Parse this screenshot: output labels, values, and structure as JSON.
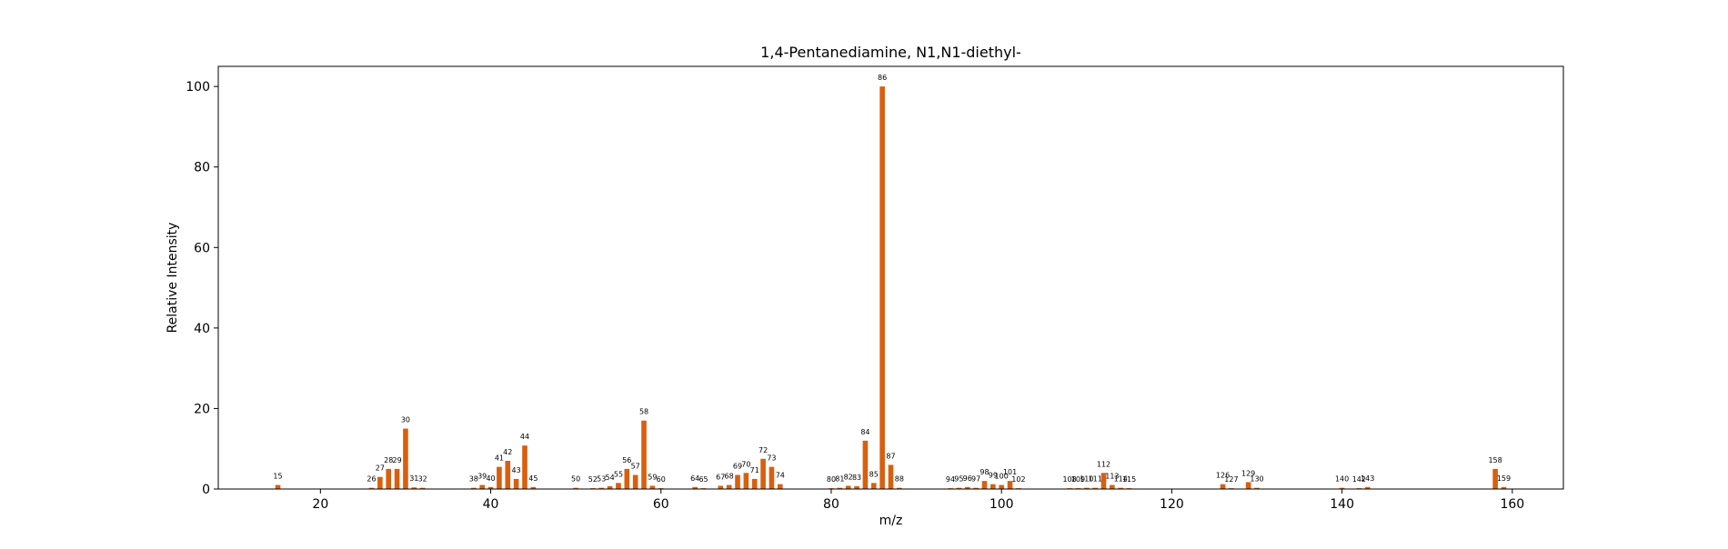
{
  "chart_data": {
    "type": "bar",
    "title": "1,4-Pentanediamine, N1,N1-diethyl-",
    "xlabel": "m/z",
    "ylabel": "Relative Intensity",
    "xlim": [
      8,
      166
    ],
    "ylim": [
      0,
      105
    ],
    "xticks": [
      20,
      40,
      60,
      80,
      100,
      120,
      140,
      160
    ],
    "yticks": [
      0,
      20,
      40,
      60,
      80,
      100
    ],
    "grid": false,
    "bar_color": "#d95f0e",
    "points": [
      {
        "mz": 15,
        "intensity": 1.0
      },
      {
        "mz": 26,
        "intensity": 0.3
      },
      {
        "mz": 27,
        "intensity": 3.0
      },
      {
        "mz": 28,
        "intensity": 5.0
      },
      {
        "mz": 29,
        "intensity": 5.0
      },
      {
        "mz": 30,
        "intensity": 15.0
      },
      {
        "mz": 31,
        "intensity": 0.4
      },
      {
        "mz": 32,
        "intensity": 0.3
      },
      {
        "mz": 38,
        "intensity": 0.3
      },
      {
        "mz": 39,
        "intensity": 1.0
      },
      {
        "mz": 40,
        "intensity": 0.5
      },
      {
        "mz": 41,
        "intensity": 5.5
      },
      {
        "mz": 42,
        "intensity": 7.0
      },
      {
        "mz": 43,
        "intensity": 2.5
      },
      {
        "mz": 44,
        "intensity": 10.8
      },
      {
        "mz": 45,
        "intensity": 0.5
      },
      {
        "mz": 50,
        "intensity": 0.3
      },
      {
        "mz": 52,
        "intensity": 0.2
      },
      {
        "mz": 53,
        "intensity": 0.3
      },
      {
        "mz": 54,
        "intensity": 0.7
      },
      {
        "mz": 55,
        "intensity": 1.5
      },
      {
        "mz": 56,
        "intensity": 5.0
      },
      {
        "mz": 57,
        "intensity": 3.5
      },
      {
        "mz": 58,
        "intensity": 17.0
      },
      {
        "mz": 59,
        "intensity": 0.8
      },
      {
        "mz": 60,
        "intensity": 0.2
      },
      {
        "mz": 64,
        "intensity": 0.5
      },
      {
        "mz": 65,
        "intensity": 0.2
      },
      {
        "mz": 67,
        "intensity": 0.8
      },
      {
        "mz": 68,
        "intensity": 1.0
      },
      {
        "mz": 69,
        "intensity": 3.5
      },
      {
        "mz": 70,
        "intensity": 4.0
      },
      {
        "mz": 71,
        "intensity": 2.5
      },
      {
        "mz": 72,
        "intensity": 7.5
      },
      {
        "mz": 73,
        "intensity": 5.5
      },
      {
        "mz": 74,
        "intensity": 1.2
      },
      {
        "mz": 80,
        "intensity": 0.2
      },
      {
        "mz": 81,
        "intensity": 0.3
      },
      {
        "mz": 82,
        "intensity": 0.8
      },
      {
        "mz": 83,
        "intensity": 0.7
      },
      {
        "mz": 84,
        "intensity": 12.0
      },
      {
        "mz": 85,
        "intensity": 1.5
      },
      {
        "mz": 86,
        "intensity": 100.0
      },
      {
        "mz": 87,
        "intensity": 6.0
      },
      {
        "mz": 88,
        "intensity": 0.3
      },
      {
        "mz": 94,
        "intensity": 0.2
      },
      {
        "mz": 95,
        "intensity": 0.3
      },
      {
        "mz": 96,
        "intensity": 0.5
      },
      {
        "mz": 97,
        "intensity": 0.3
      },
      {
        "mz": 98,
        "intensity": 2.0
      },
      {
        "mz": 99,
        "intensity": 1.2
      },
      {
        "mz": 100,
        "intensity": 1.0
      },
      {
        "mz": 101,
        "intensity": 2.0
      },
      {
        "mz": 102,
        "intensity": 0.2
      },
      {
        "mz": 108,
        "intensity": 0.2
      },
      {
        "mz": 109,
        "intensity": 0.2
      },
      {
        "mz": 110,
        "intensity": 0.3
      },
      {
        "mz": 111,
        "intensity": 0.3
      },
      {
        "mz": 112,
        "intensity": 4.0
      },
      {
        "mz": 113,
        "intensity": 1.0
      },
      {
        "mz": 114,
        "intensity": 0.3
      },
      {
        "mz": 115,
        "intensity": 0.2
      },
      {
        "mz": 126,
        "intensity": 1.2
      },
      {
        "mz": 127,
        "intensity": 0.2
      },
      {
        "mz": 129,
        "intensity": 1.7
      },
      {
        "mz": 130,
        "intensity": 0.3
      },
      {
        "mz": 140,
        "intensity": 0.3
      },
      {
        "mz": 142,
        "intensity": 0.2
      },
      {
        "mz": 143,
        "intensity": 0.5
      },
      {
        "mz": 158,
        "intensity": 5.0
      },
      {
        "mz": 159,
        "intensity": 0.5
      }
    ]
  }
}
